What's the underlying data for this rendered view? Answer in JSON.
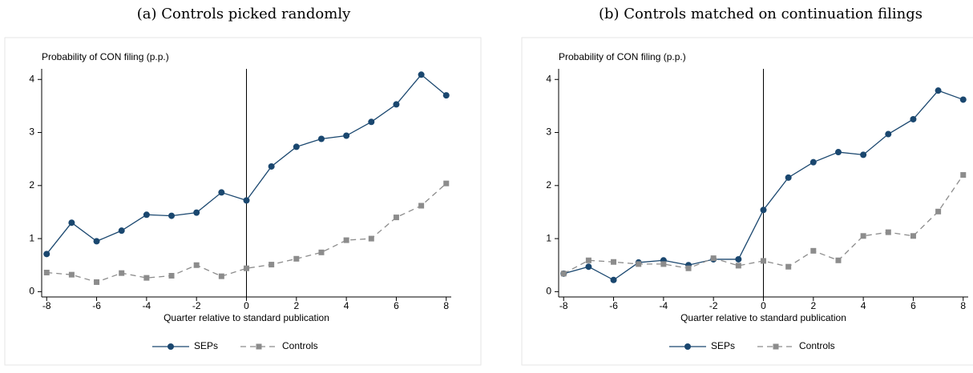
{
  "chart_data": [
    {
      "type": "line",
      "title": "(a) Controls picked randomly",
      "y_label": "Probability of CON filing (p.p.)",
      "x_label": "Quarter relative to standard publication",
      "x": [
        -8,
        -7,
        -6,
        -5,
        -4,
        -3,
        -2,
        -1,
        0,
        1,
        2,
        3,
        4,
        5,
        6,
        7,
        8
      ],
      "series": [
        {
          "name": "SEPs",
          "color": "#1a476f",
          "line_style": "solid",
          "marker": "circle",
          "values": [
            0.71,
            1.3,
            0.95,
            1.15,
            1.45,
            1.43,
            1.49,
            1.87,
            1.72,
            2.36,
            2.73,
            2.88,
            2.94,
            3.2,
            3.53,
            4.09,
            3.7
          ]
        },
        {
          "name": "Controls",
          "color": "#8c8c8c",
          "line_style": "dashed",
          "marker": "square",
          "values": [
            0.36,
            0.32,
            0.18,
            0.35,
            0.26,
            0.3,
            0.5,
            0.29,
            0.44,
            0.51,
            0.62,
            0.74,
            0.97,
            1.0,
            1.4,
            1.62,
            2.04
          ]
        }
      ],
      "xlim": [
        -8.2,
        8.2
      ],
      "ylim": [
        -0.1,
        4.2
      ],
      "xticks": [
        -8,
        -6,
        -4,
        -2,
        0,
        2,
        4,
        6,
        8
      ],
      "yticks": [
        0,
        1,
        2,
        3,
        4
      ],
      "vline": 0,
      "grid": false,
      "legend": "bottom"
    },
    {
      "type": "line",
      "title": "(b) Controls matched on continuation filings",
      "y_label": "Probability of CON filing (p.p.)",
      "x_label": "Quarter relative to standard publication",
      "x": [
        -8,
        -7,
        -6,
        -5,
        -4,
        -3,
        -2,
        -1,
        0,
        1,
        2,
        3,
        4,
        5,
        6,
        7,
        8
      ],
      "series": [
        {
          "name": "SEPs",
          "color": "#1a476f",
          "line_style": "solid",
          "marker": "circle",
          "values": [
            0.34,
            0.47,
            0.22,
            0.55,
            0.59,
            0.5,
            0.61,
            0.61,
            1.54,
            2.15,
            2.44,
            2.63,
            2.58,
            2.97,
            3.25,
            3.79,
            3.62
          ]
        },
        {
          "name": "Controls",
          "color": "#8c8c8c",
          "line_style": "dashed",
          "marker": "square",
          "values": [
            0.34,
            0.59,
            0.56,
            0.52,
            0.52,
            0.44,
            0.63,
            0.49,
            0.58,
            0.47,
            0.77,
            0.59,
            1.05,
            1.12,
            1.05,
            1.51,
            2.2
          ]
        }
      ],
      "xlim": [
        -8.2,
        8.2
      ],
      "ylim": [
        -0.1,
        4.2
      ],
      "xticks": [
        -8,
        -6,
        -4,
        -2,
        0,
        2,
        4,
        6,
        8
      ],
      "yticks": [
        0,
        1,
        2,
        3,
        4
      ],
      "vline": 0,
      "grid": false,
      "legend": "bottom"
    }
  ]
}
